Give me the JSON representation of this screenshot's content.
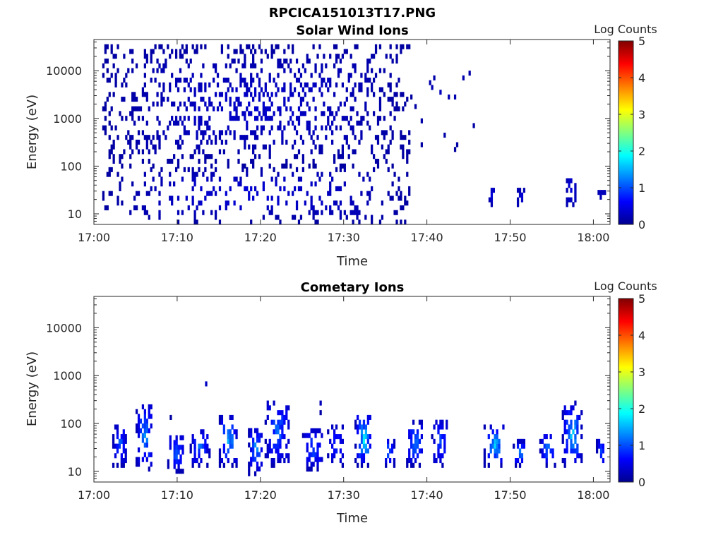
{
  "figure_title": "RPCICA151013T17.PNG",
  "colors": {
    "colormap": [
      "#00008f",
      "#0000ff",
      "#0080ff",
      "#00ffff",
      "#80ff80",
      "#ffff00",
      "#ff8000",
      "#ff0000",
      "#800000"
    ]
  },
  "chart_data": [
    {
      "type": "heatmap",
      "title": "Solar Wind Ions",
      "xlabel": "Time",
      "ylabel": "Energy (eV)",
      "yscale": "log",
      "ylim": [
        6,
        45000
      ],
      "xlim": [
        "17:00",
        "18:02"
      ],
      "x_ticks": [
        "17:00",
        "17:10",
        "17:20",
        "17:30",
        "17:40",
        "17:50",
        "18:00"
      ],
      "y_ticks": [
        "10",
        "100",
        "1000",
        "10000"
      ],
      "colorbar": {
        "label": "Log Counts",
        "range": [
          0,
          5
        ],
        "ticks": [
          "0",
          "1",
          "2",
          "3",
          "4",
          "5"
        ]
      },
      "grid": false,
      "seed": 17,
      "clusters": [
        {
          "time_min": 1.0,
          "time_max": 38.0,
          "energy_min": 90,
          "energy_max": 30000,
          "value_min": 0.1,
          "value_max": 0.4,
          "density": 0.32
        },
        {
          "time_min": 1.0,
          "time_max": 38.0,
          "energy_min": 6,
          "energy_max": 90,
          "value_min": 0.1,
          "value_max": 0.5,
          "density": 0.22
        },
        {
          "time_min": 38.0,
          "time_max": 46.0,
          "energy_min": 200,
          "energy_max": 15000,
          "value_min": 0.1,
          "value_max": 0.3,
          "density": 0.04
        },
        {
          "time_min": 47.4,
          "time_max": 48.0,
          "energy_min": 14,
          "energy_max": 35,
          "value_min": 0.2,
          "value_max": 0.5,
          "density": 0.9
        },
        {
          "time_min": 50.8,
          "time_max": 51.6,
          "energy_min": 14,
          "energy_max": 28,
          "value_min": 0.2,
          "value_max": 0.5,
          "density": 0.9
        },
        {
          "time_min": 56.7,
          "time_max": 57.8,
          "energy_min": 14,
          "energy_max": 55,
          "value_min": 0.2,
          "value_max": 0.6,
          "density": 0.7
        },
        {
          "time_min": 60.5,
          "time_max": 61.3,
          "energy_min": 20,
          "energy_max": 26,
          "value_min": 0.2,
          "value_max": 0.5,
          "density": 0.9
        }
      ]
    },
    {
      "type": "heatmap",
      "title": "Cometary Ions",
      "xlabel": "Time",
      "ylabel": "Energy (eV)",
      "yscale": "log",
      "ylim": [
        6,
        45000
      ],
      "xlim": [
        "17:00",
        "18:02"
      ],
      "x_ticks": [
        "17:00",
        "17:10",
        "17:20",
        "17:30",
        "17:40",
        "17:50",
        "18:00"
      ],
      "y_ticks": [
        "10",
        "100",
        "1000",
        "10000"
      ],
      "colorbar": {
        "label": "Log Counts",
        "range": [
          0,
          5
        ],
        "ticks": [
          "0",
          "1",
          "2",
          "3",
          "4",
          "5"
        ]
      },
      "grid": false,
      "seed": 29,
      "clusters": [
        {
          "time_min": 2.2,
          "time_max": 3.8,
          "energy_min": 12,
          "energy_max": 85,
          "value_min": 0.2,
          "value_max": 1.3,
          "density": 0.75
        },
        {
          "time_min": 5.0,
          "time_max": 7.0,
          "energy_min": 10,
          "energy_max": 250,
          "value_min": 0.2,
          "value_max": 1.6,
          "density": 0.7
        },
        {
          "time_min": 8.8,
          "time_max": 10.8,
          "energy_min": 9,
          "energy_max": 55,
          "value_min": 0.2,
          "value_max": 1.4,
          "density": 0.6
        },
        {
          "time_min": 11.5,
          "time_max": 13.8,
          "energy_min": 12,
          "energy_max": 70,
          "value_min": 0.2,
          "value_max": 1.4,
          "density": 0.65
        },
        {
          "time_min": 15.0,
          "time_max": 17.2,
          "energy_min": 12,
          "energy_max": 140,
          "value_min": 0.2,
          "value_max": 1.8,
          "density": 0.65
        },
        {
          "time_min": 18.5,
          "time_max": 20.2,
          "energy_min": 8,
          "energy_max": 80,
          "value_min": 0.2,
          "value_max": 1.6,
          "density": 0.6
        },
        {
          "time_min": 20.5,
          "time_max": 23.5,
          "energy_min": 12,
          "energy_max": 300,
          "value_min": 0.2,
          "value_max": 1.3,
          "density": 0.6
        },
        {
          "time_min": 25.0,
          "time_max": 27.5,
          "energy_min": 10,
          "energy_max": 75,
          "value_min": 0.2,
          "value_max": 1.3,
          "density": 0.55
        },
        {
          "time_min": 28.0,
          "time_max": 30.0,
          "energy_min": 12,
          "energy_max": 90,
          "value_min": 0.2,
          "value_max": 1.0,
          "density": 0.45
        },
        {
          "time_min": 31.3,
          "time_max": 33.3,
          "energy_min": 12,
          "energy_max": 150,
          "value_min": 0.2,
          "value_max": 2.1,
          "density": 0.75
        },
        {
          "time_min": 34.7,
          "time_max": 36.0,
          "energy_min": 12,
          "energy_max": 45,
          "value_min": 0.2,
          "value_max": 1.5,
          "density": 0.6
        },
        {
          "time_min": 37.5,
          "time_max": 39.5,
          "energy_min": 12,
          "energy_max": 100,
          "value_min": 0.2,
          "value_max": 1.6,
          "density": 0.6
        },
        {
          "time_min": 40.5,
          "time_max": 42.5,
          "energy_min": 12,
          "energy_max": 120,
          "value_min": 0.2,
          "value_max": 1.2,
          "density": 0.55
        },
        {
          "time_min": 46.8,
          "time_max": 49.3,
          "energy_min": 12,
          "energy_max": 85,
          "value_min": 0.2,
          "value_max": 1.9,
          "density": 0.6
        },
        {
          "time_min": 50.3,
          "time_max": 51.8,
          "energy_min": 12,
          "energy_max": 40,
          "value_min": 0.2,
          "value_max": 1.7,
          "density": 0.7
        },
        {
          "time_min": 53.5,
          "time_max": 55.5,
          "energy_min": 12,
          "energy_max": 60,
          "value_min": 0.2,
          "value_max": 1.5,
          "density": 0.6
        },
        {
          "time_min": 56.2,
          "time_max": 58.5,
          "energy_min": 12,
          "energy_max": 250,
          "value_min": 0.2,
          "value_max": 1.9,
          "density": 0.65
        },
        {
          "time_min": 60.3,
          "time_max": 61.3,
          "energy_min": 12,
          "energy_max": 45,
          "value_min": 0.2,
          "value_max": 1.4,
          "density": 0.7
        },
        {
          "time_min": 0.6,
          "time_max": 39.0,
          "energy_min": 120,
          "energy_max": 3000,
          "value_min": 0.1,
          "value_max": 0.4,
          "density": 0.004
        }
      ]
    }
  ]
}
